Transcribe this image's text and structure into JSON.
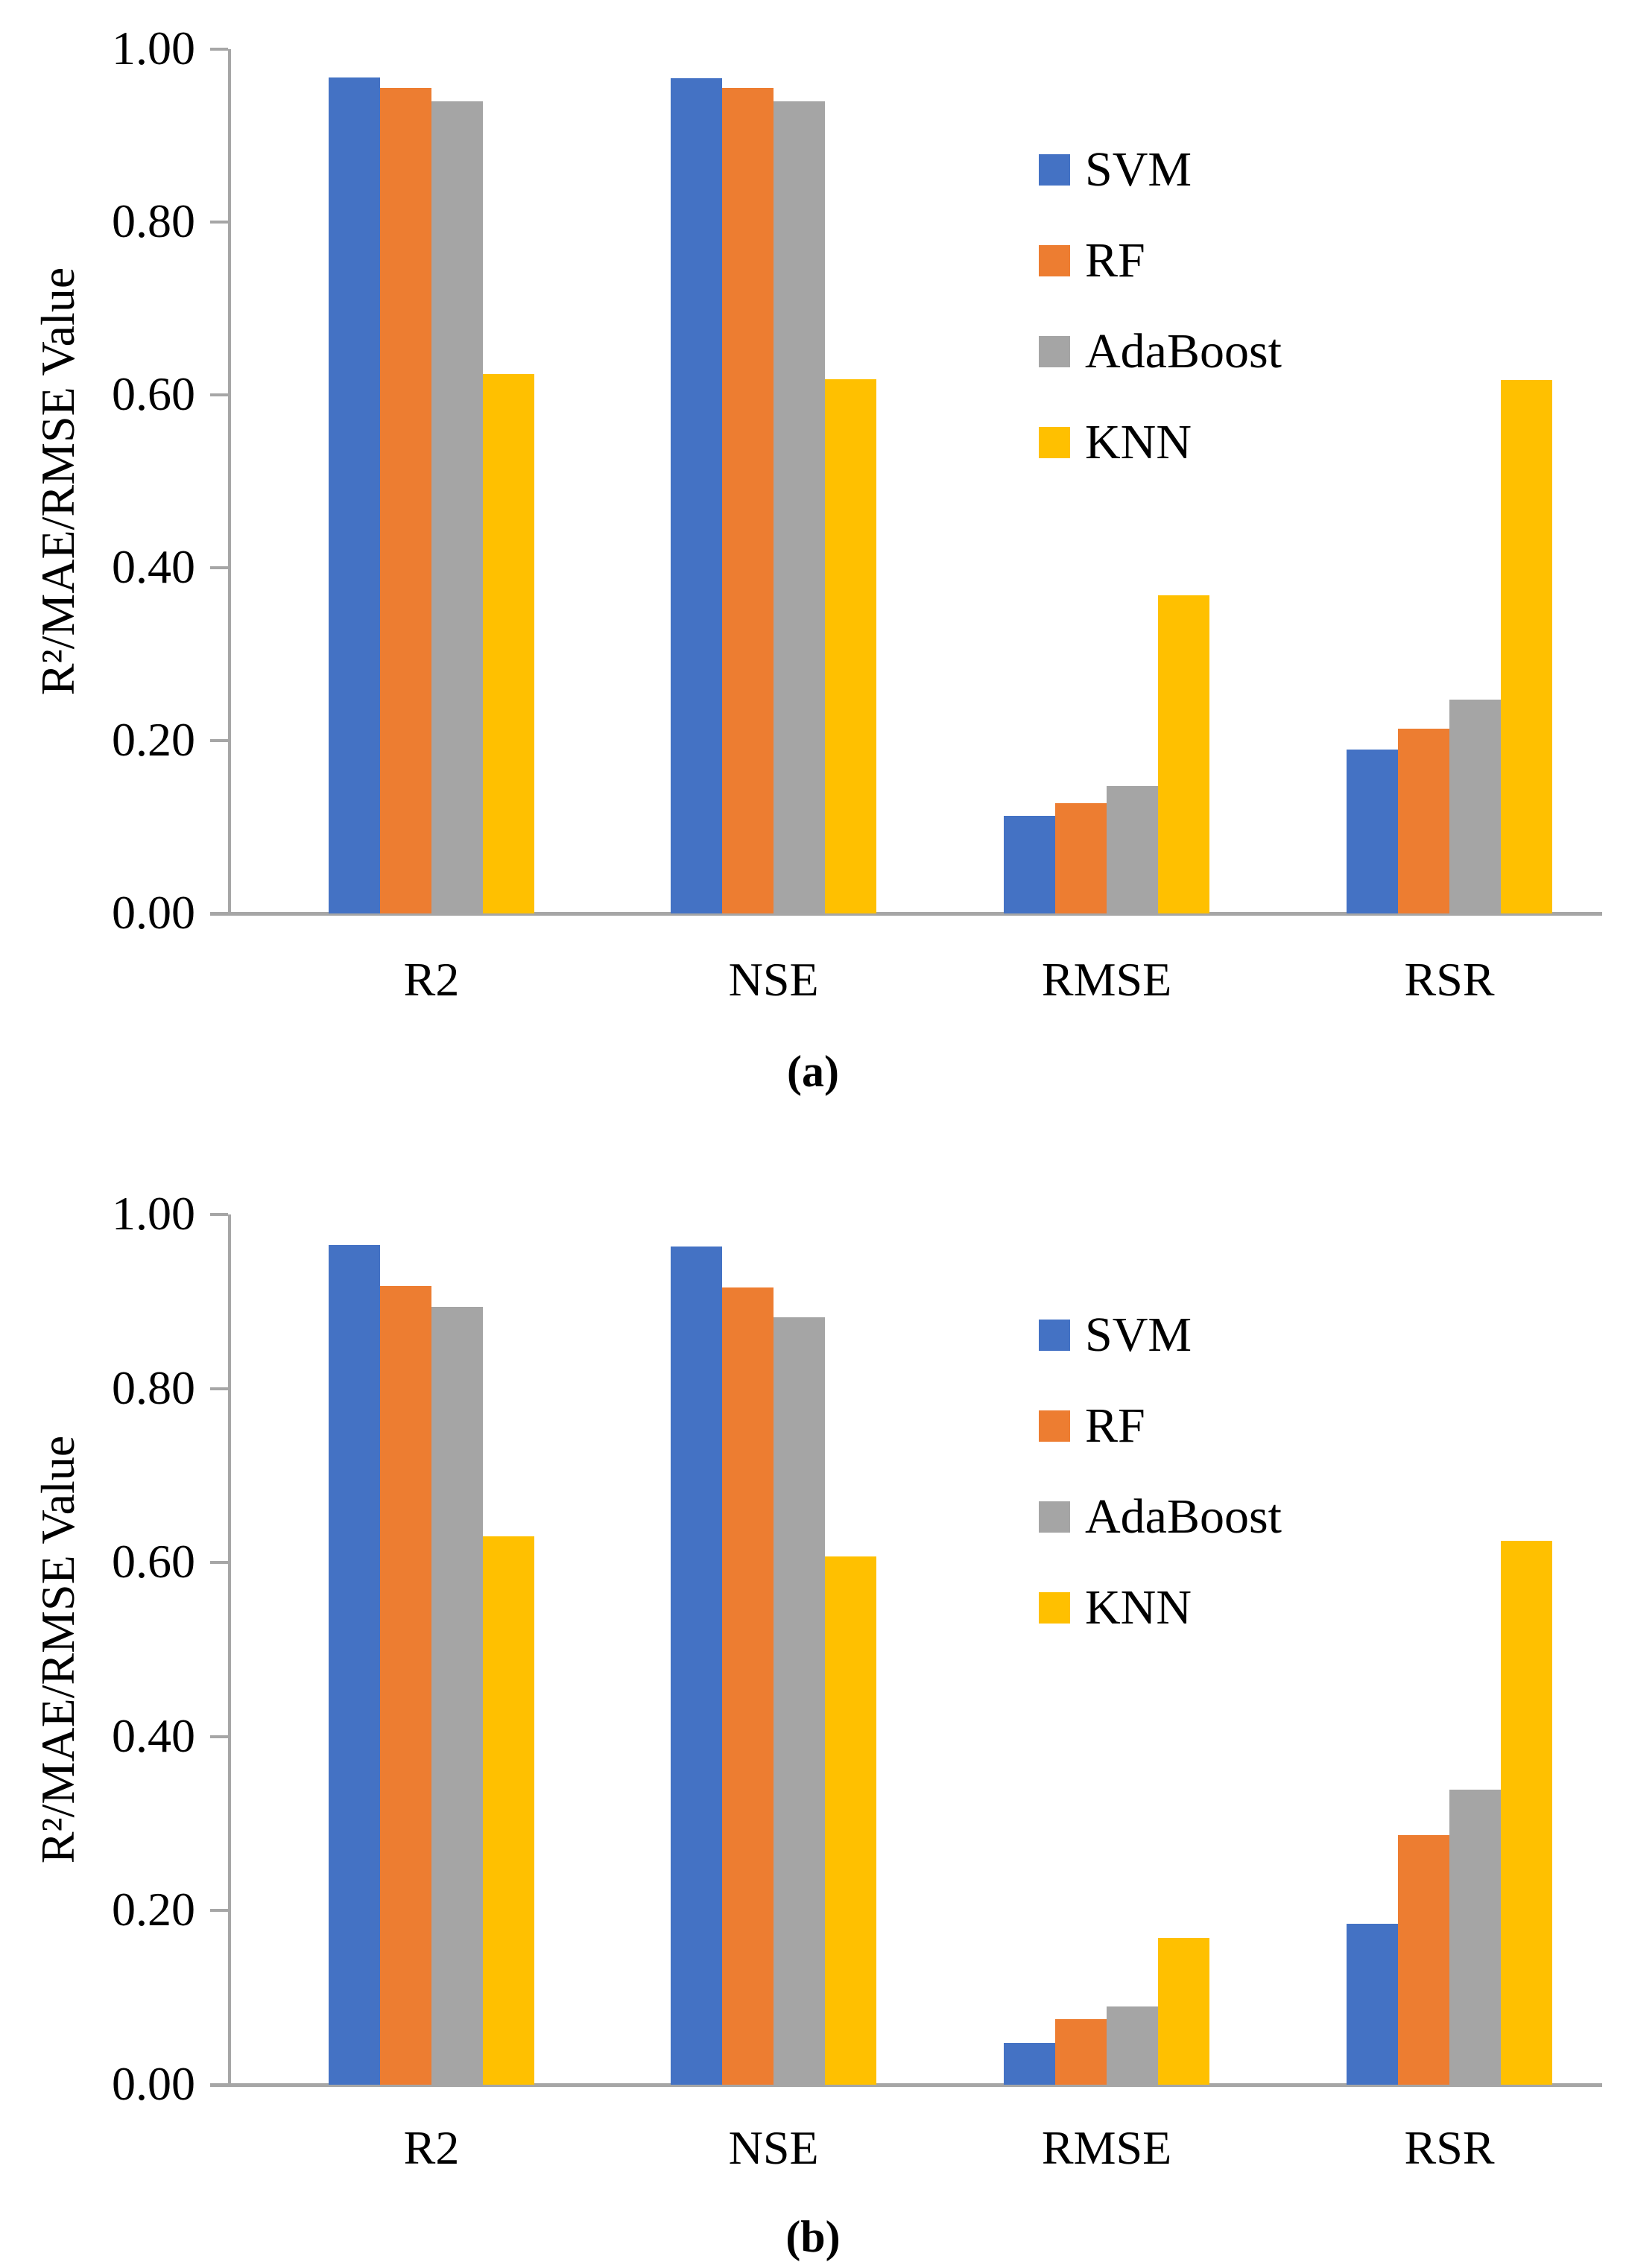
{
  "figure": {
    "background": "#ffffff",
    "text_color": "#000000",
    "axis_color": "#a6a6a6"
  },
  "chart_data": [
    {
      "type": "bar",
      "title": "",
      "caption": "(a)",
      "ylabel": "R²/MAE/RMSE Value",
      "xlabel": "",
      "ylim": [
        0.0,
        1.0
      ],
      "ytick_step": 0.2,
      "ytick_labels": [
        "1.00",
        "0.80",
        "0.60",
        "0.40",
        "0.20",
        "0.00"
      ],
      "grid": false,
      "legend_position": "upper-right-inside",
      "categories": [
        "R2",
        "NSE",
        "RMSE",
        "RSR"
      ],
      "series": [
        {
          "name": "SVM",
          "color": "#4472C4",
          "values": [
            0.967,
            0.966,
            0.113,
            0.19
          ]
        },
        {
          "name": "RF",
          "color": "#ED7D31",
          "values": [
            0.955,
            0.955,
            0.128,
            0.214
          ]
        },
        {
          "name": "AdaBoost",
          "color": "#A5A5A5",
          "values": [
            0.94,
            0.94,
            0.147,
            0.247
          ]
        },
        {
          "name": "KNN",
          "color": "#FFC000",
          "values": [
            0.624,
            0.618,
            0.368,
            0.617
          ]
        }
      ]
    },
    {
      "type": "bar",
      "title": "",
      "caption": "(b)",
      "ylabel": "R²/MAE/RMSE Value",
      "xlabel": "",
      "ylim": [
        0.0,
        1.0
      ],
      "ytick_step": 0.2,
      "ytick_labels": [
        "1.00",
        "0.80",
        "0.60",
        "0.40",
        "0.20",
        "0.00"
      ],
      "grid": false,
      "legend_position": "upper-right-inside",
      "categories": [
        "R2",
        "NSE",
        "RMSE",
        "RSR"
      ],
      "series": [
        {
          "name": "SVM",
          "color": "#4472C4",
          "values": [
            0.965,
            0.963,
            0.048,
            0.185
          ]
        },
        {
          "name": "RF",
          "color": "#ED7D31",
          "values": [
            0.918,
            0.916,
            0.075,
            0.287
          ]
        },
        {
          "name": "AdaBoost",
          "color": "#A5A5A5",
          "values": [
            0.894,
            0.882,
            0.09,
            0.339
          ]
        },
        {
          "name": "KNN",
          "color": "#FFC000",
          "values": [
            0.63,
            0.607,
            0.169,
            0.625
          ]
        }
      ]
    }
  ]
}
